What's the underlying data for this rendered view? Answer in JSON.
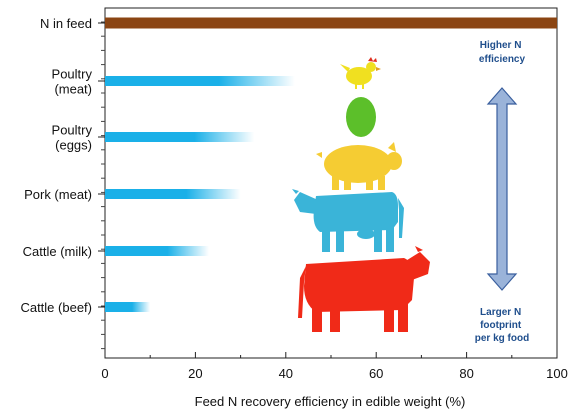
{
  "chart_data": {
    "type": "bar",
    "categories": [
      "N in feed",
      "Poultry\n(meat)",
      "Poultry\n(eggs)",
      "Pork (meat)",
      "Cattle (milk)",
      "Cattle (beef)"
    ],
    "values": [
      100,
      42,
      33,
      30,
      23,
      10
    ],
    "xlabel": "Feed N recovery efficiency in edible weight (%)",
    "xlim": [
      0,
      100
    ],
    "xticks": [
      0,
      20,
      40,
      60,
      80,
      100
    ],
    "bar_colors": [
      "#8b4513",
      "#1ab0e8",
      "#1ab0e8",
      "#1ab0e8",
      "#1ab0e8",
      "#1ab0e8"
    ],
    "annotations": {
      "top": [
        "Higher N",
        "efficiency"
      ],
      "bottom": [
        "Larger N",
        "footprint",
        "per kg food"
      ]
    },
    "icons": [
      "chicken-icon",
      "egg-icon",
      "pig-icon",
      "dairy-cow-icon",
      "beef-cow-icon"
    ],
    "icon_colors": {
      "chicken": "#f0e020",
      "egg": "#5cbf2a",
      "pig": "#f5cc33",
      "dairy_cow": "#3ab4d8",
      "beef_cow": "#f02a18"
    },
    "arrow_color": "#9ab3d9"
  }
}
